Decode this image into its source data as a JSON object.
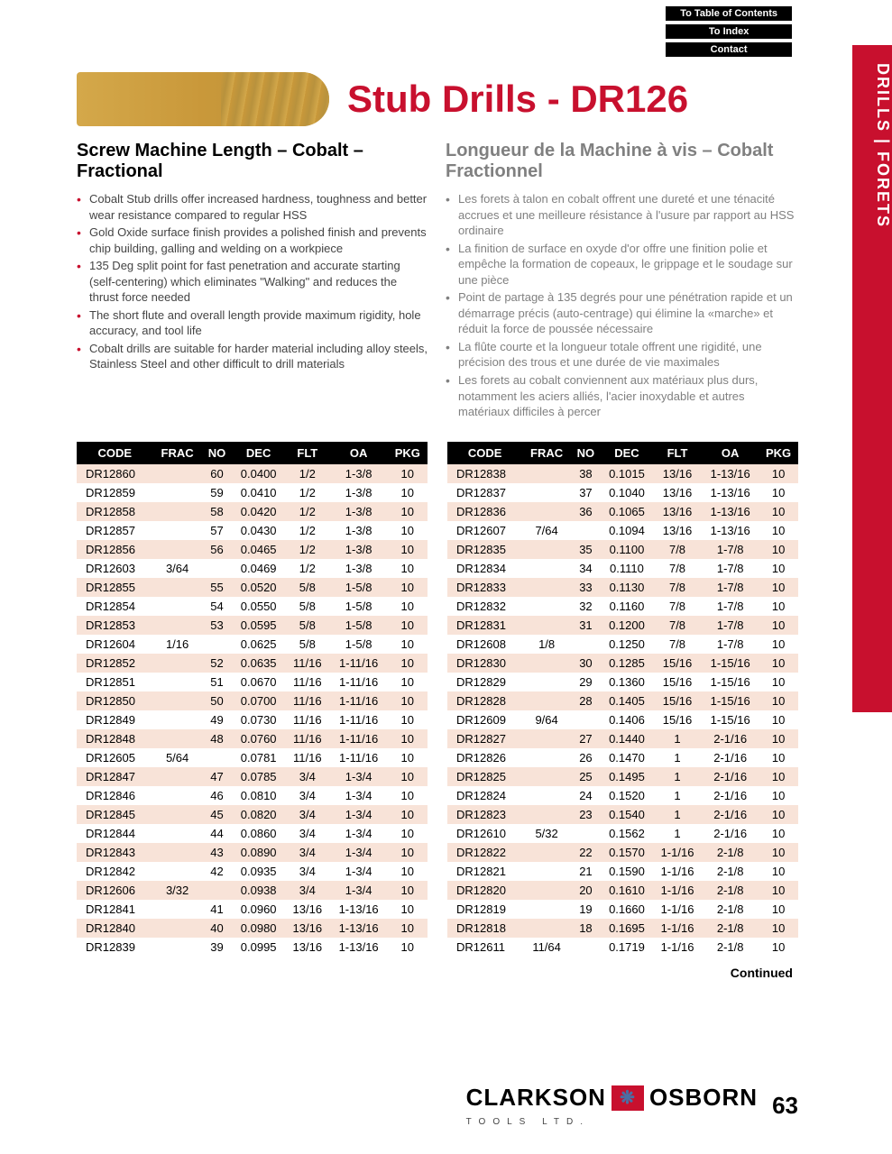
{
  "nav": {
    "toc": "To Table of Contents",
    "index": "To Index",
    "contact": "Contact"
  },
  "side_tab": "DRILLS | FORETS",
  "page_title": "Stub Drills - DR126",
  "subtitle_en": "Screw Machine Length – Cobalt – Fractional",
  "subtitle_fr": "Longueur de la Machine à vis – Cobalt Fractionnel",
  "bullets_en": [
    "Cobalt Stub drills offer increased hardness, toughness and better wear resistance compared to regular HSS",
    "Gold Oxide surface finish provides a polished finish and prevents chip building, galling and welding on a workpiece",
    "135 Deg split point for fast penetration and accurate starting (self-centering) which eliminates \"Walking\" and reduces the thrust force needed",
    "The short flute and overall length provide maximum rigidity, hole accuracy, and tool life",
    "Cobalt drills are suitable for harder material including alloy steels, Stainless Steel and other difficult to drill materials"
  ],
  "bullets_fr": [
    "Les forets à talon en cobalt offrent une dureté et une ténacité accrues et une meilleure résistance à l'usure par rapport au HSS ordinaire",
    "La finition de surface en oxyde d'or offre une finition polie et empêche la formation de copeaux, le grippage et le soudage sur une pièce",
    "Point de partage à 135 degrés pour une pénétration rapide et un démarrage précis (auto-centrage) qui élimine la «marche» et réduit la force de poussée nécessaire",
    "La flûte courte et la longueur totale offrent une rigidité, une précision des trous et une durée de vie maximales",
    "Les forets au cobalt conviennent aux matériaux plus durs, notamment les aciers alliés, l'acier inoxydable et autres matériaux difficiles à percer"
  ],
  "table": {
    "columns": [
      "CODE",
      "FRAC",
      "NO",
      "DEC",
      "FLT",
      "OA",
      "PKG"
    ],
    "alt_row_color": "#f8e3d8",
    "header_bg": "#000000",
    "header_fg": "#ffffff"
  },
  "rows_left": [
    [
      "DR12860",
      "",
      "60",
      "0.0400",
      "1/2",
      "1-3/8",
      "10"
    ],
    [
      "DR12859",
      "",
      "59",
      "0.0410",
      "1/2",
      "1-3/8",
      "10"
    ],
    [
      "DR12858",
      "",
      "58",
      "0.0420",
      "1/2",
      "1-3/8",
      "10"
    ],
    [
      "DR12857",
      "",
      "57",
      "0.0430",
      "1/2",
      "1-3/8",
      "10"
    ],
    [
      "DR12856",
      "",
      "56",
      "0.0465",
      "1/2",
      "1-3/8",
      "10"
    ],
    [
      "DR12603",
      "3/64",
      "",
      "0.0469",
      "1/2",
      "1-3/8",
      "10"
    ],
    [
      "DR12855",
      "",
      "55",
      "0.0520",
      "5/8",
      "1-5/8",
      "10"
    ],
    [
      "DR12854",
      "",
      "54",
      "0.0550",
      "5/8",
      "1-5/8",
      "10"
    ],
    [
      "DR12853",
      "",
      "53",
      "0.0595",
      "5/8",
      "1-5/8",
      "10"
    ],
    [
      "DR12604",
      "1/16",
      "",
      "0.0625",
      "5/8",
      "1-5/8",
      "10"
    ],
    [
      "DR12852",
      "",
      "52",
      "0.0635",
      "11/16",
      "1-11/16",
      "10"
    ],
    [
      "DR12851",
      "",
      "51",
      "0.0670",
      "11/16",
      "1-11/16",
      "10"
    ],
    [
      "DR12850",
      "",
      "50",
      "0.0700",
      "11/16",
      "1-11/16",
      "10"
    ],
    [
      "DR12849",
      "",
      "49",
      "0.0730",
      "11/16",
      "1-11/16",
      "10"
    ],
    [
      "DR12848",
      "",
      "48",
      "0.0760",
      "11/16",
      "1-11/16",
      "10"
    ],
    [
      "DR12605",
      "5/64",
      "",
      "0.0781",
      "11/16",
      "1-11/16",
      "10"
    ],
    [
      "DR12847",
      "",
      "47",
      "0.0785",
      "3/4",
      "1-3/4",
      "10"
    ],
    [
      "DR12846",
      "",
      "46",
      "0.0810",
      "3/4",
      "1-3/4",
      "10"
    ],
    [
      "DR12845",
      "",
      "45",
      "0.0820",
      "3/4",
      "1-3/4",
      "10"
    ],
    [
      "DR12844",
      "",
      "44",
      "0.0860",
      "3/4",
      "1-3/4",
      "10"
    ],
    [
      "DR12843",
      "",
      "43",
      "0.0890",
      "3/4",
      "1-3/4",
      "10"
    ],
    [
      "DR12842",
      "",
      "42",
      "0.0935",
      "3/4",
      "1-3/4",
      "10"
    ],
    [
      "DR12606",
      "3/32",
      "",
      "0.0938",
      "3/4",
      "1-3/4",
      "10"
    ],
    [
      "DR12841",
      "",
      "41",
      "0.0960",
      "13/16",
      "1-13/16",
      "10"
    ],
    [
      "DR12840",
      "",
      "40",
      "0.0980",
      "13/16",
      "1-13/16",
      "10"
    ],
    [
      "DR12839",
      "",
      "39",
      "0.0995",
      "13/16",
      "1-13/16",
      "10"
    ]
  ],
  "rows_right": [
    [
      "DR12838",
      "",
      "38",
      "0.1015",
      "13/16",
      "1-13/16",
      "10"
    ],
    [
      "DR12837",
      "",
      "37",
      "0.1040",
      "13/16",
      "1-13/16",
      "10"
    ],
    [
      "DR12836",
      "",
      "36",
      "0.1065",
      "13/16",
      "1-13/16",
      "10"
    ],
    [
      "DR12607",
      "7/64",
      "",
      "0.1094",
      "13/16",
      "1-13/16",
      "10"
    ],
    [
      "DR12835",
      "",
      "35",
      "0.1100",
      "7/8",
      "1-7/8",
      "10"
    ],
    [
      "DR12834",
      "",
      "34",
      "0.1110",
      "7/8",
      "1-7/8",
      "10"
    ],
    [
      "DR12833",
      "",
      "33",
      "0.1130",
      "7/8",
      "1-7/8",
      "10"
    ],
    [
      "DR12832",
      "",
      "32",
      "0.1160",
      "7/8",
      "1-7/8",
      "10"
    ],
    [
      "DR12831",
      "",
      "31",
      "0.1200",
      "7/8",
      "1-7/8",
      "10"
    ],
    [
      "DR12608",
      "1/8",
      "",
      "0.1250",
      "7/8",
      "1-7/8",
      "10"
    ],
    [
      "DR12830",
      "",
      "30",
      "0.1285",
      "15/16",
      "1-15/16",
      "10"
    ],
    [
      "DR12829",
      "",
      "29",
      "0.1360",
      "15/16",
      "1-15/16",
      "10"
    ],
    [
      "DR12828",
      "",
      "28",
      "0.1405",
      "15/16",
      "1-15/16",
      "10"
    ],
    [
      "DR12609",
      "9/64",
      "",
      "0.1406",
      "15/16",
      "1-15/16",
      "10"
    ],
    [
      "DR12827",
      "",
      "27",
      "0.1440",
      "1",
      "2-1/16",
      "10"
    ],
    [
      "DR12826",
      "",
      "26",
      "0.1470",
      "1",
      "2-1/16",
      "10"
    ],
    [
      "DR12825",
      "",
      "25",
      "0.1495",
      "1",
      "2-1/16",
      "10"
    ],
    [
      "DR12824",
      "",
      "24",
      "0.1520",
      "1",
      "2-1/16",
      "10"
    ],
    [
      "DR12823",
      "",
      "23",
      "0.1540",
      "1",
      "2-1/16",
      "10"
    ],
    [
      "DR12610",
      "5/32",
      "",
      "0.1562",
      "1",
      "2-1/16",
      "10"
    ],
    [
      "DR12822",
      "",
      "22",
      "0.1570",
      "1-1/16",
      "2-1/8",
      "10"
    ],
    [
      "DR12821",
      "",
      "21",
      "0.1590",
      "1-1/16",
      "2-1/8",
      "10"
    ],
    [
      "DR12820",
      "",
      "20",
      "0.1610",
      "1-1/16",
      "2-1/8",
      "10"
    ],
    [
      "DR12819",
      "",
      "19",
      "0.1660",
      "1-1/16",
      "2-1/8",
      "10"
    ],
    [
      "DR12818",
      "",
      "18",
      "0.1695",
      "1-1/16",
      "2-1/8",
      "10"
    ],
    [
      "DR12611",
      "11/64",
      "",
      "0.1719",
      "1-1/16",
      "2-1/8",
      "10"
    ]
  ],
  "continued": "Continued",
  "brand": {
    "name1": "CLARKSON",
    "name2": "OSBORN",
    "sub": "TOOLS LTD."
  },
  "page_number": "63",
  "colors": {
    "accent": "#c8102e",
    "gray": "#808080",
    "black": "#000000"
  }
}
